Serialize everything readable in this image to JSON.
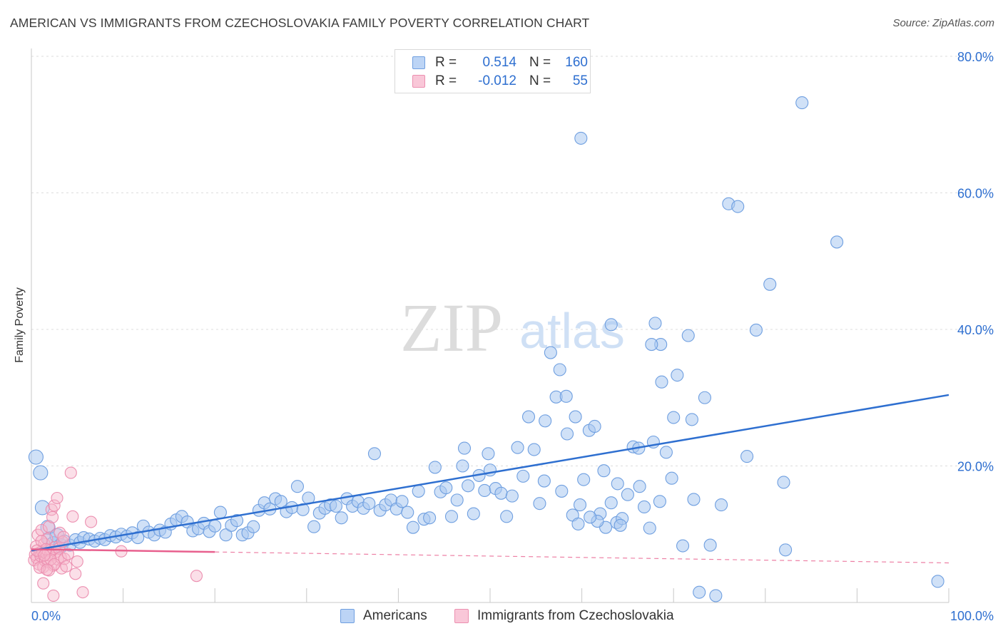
{
  "title": "AMERICAN VS IMMIGRANTS FROM CZECHOSLOVAKIA FAMILY POVERTY CORRELATION CHART",
  "source": "Source: ZipAtlas.com",
  "watermark": {
    "zip": "ZIP",
    "atlas": "atlas"
  },
  "legend": {
    "r_label": "R =",
    "n_label": "N =",
    "rows": [
      {
        "name": "Americans",
        "r": "0.514",
        "n": "160"
      },
      {
        "name": "Immigrants from Czechoslovakia",
        "r": "-0.012",
        "n": "55"
      }
    ]
  },
  "chart_data": {
    "type": "scatter",
    "title": "AMERICAN VS IMMIGRANTS FROM CZECHOSLOVAKIA FAMILY POVERTY CORRELATION CHART",
    "xlabel": "",
    "ylabel": "Family Poverty",
    "xlim": [
      0,
      100
    ],
    "ylim": [
      0,
      80
    ],
    "x_tick_labels": [
      "0.0%",
      "100.0%"
    ],
    "y_ticks": [
      20,
      40,
      60,
      80
    ],
    "y_tick_labels": [
      "20.0%",
      "40.0%",
      "60.0%",
      "80.0%"
    ],
    "colors": {
      "americans": "#2e6fd0",
      "czech": "#e8608e",
      "americans_fill": "#a9c8f0",
      "czech_fill": "#f7b8cd"
    },
    "series": [
      {
        "name": "Americans",
        "r": 0.514,
        "n": 160,
        "trend": {
          "x": [
            0,
            100
          ],
          "y": [
            7.6,
            30.4
          ],
          "style": "solid"
        },
        "points": [
          [
            0.5,
            21.3
          ],
          [
            1.0,
            19.0
          ],
          [
            1.2,
            13.9
          ],
          [
            1.8,
            11.0
          ],
          [
            2.0,
            9.3
          ],
          [
            2.4,
            8.6
          ],
          [
            2.8,
            9.8
          ],
          [
            3.2,
            8.3
          ],
          [
            3.6,
            9.0
          ],
          [
            4.2,
            8.4
          ],
          [
            4.8,
            9.2
          ],
          [
            5.3,
            8.8
          ],
          [
            5.7,
            9.5
          ],
          [
            6.3,
            9.3
          ],
          [
            6.9,
            9.0
          ],
          [
            7.5,
            9.4
          ],
          [
            8.0,
            9.2
          ],
          [
            8.6,
            9.8
          ],
          [
            9.2,
            9.6
          ],
          [
            9.8,
            10.0
          ],
          [
            10.4,
            9.7
          ],
          [
            11.0,
            10.2
          ],
          [
            11.6,
            9.5
          ],
          [
            12.2,
            11.2
          ],
          [
            12.8,
            10.3
          ],
          [
            13.4,
            9.9
          ],
          [
            14.0,
            10.6
          ],
          [
            14.6,
            10.3
          ],
          [
            15.2,
            11.5
          ],
          [
            15.8,
            12.1
          ],
          [
            16.4,
            12.6
          ],
          [
            17.0,
            11.8
          ],
          [
            17.6,
            10.5
          ],
          [
            18.2,
            10.8
          ],
          [
            18.8,
            11.6
          ],
          [
            19.4,
            10.4
          ],
          [
            20.0,
            11.2
          ],
          [
            20.6,
            13.2
          ],
          [
            21.2,
            9.9
          ],
          [
            21.8,
            11.3
          ],
          [
            22.4,
            12.0
          ],
          [
            23.0,
            9.9
          ],
          [
            23.6,
            10.2
          ],
          [
            24.2,
            11.1
          ],
          [
            24.8,
            13.5
          ],
          [
            25.4,
            14.6
          ],
          [
            26.0,
            13.7
          ],
          [
            26.6,
            15.2
          ],
          [
            27.2,
            14.8
          ],
          [
            27.8,
            13.3
          ],
          [
            28.4,
            13.9
          ],
          [
            29.0,
            17.0
          ],
          [
            29.6,
            13.6
          ],
          [
            30.2,
            15.3
          ],
          [
            30.8,
            11.1
          ],
          [
            31.4,
            13.1
          ],
          [
            32.0,
            13.8
          ],
          [
            32.6,
            14.3
          ],
          [
            33.2,
            14.1
          ],
          [
            33.8,
            12.4
          ],
          [
            34.4,
            15.2
          ],
          [
            35.0,
            14.1
          ],
          [
            35.6,
            14.8
          ],
          [
            36.2,
            13.8
          ],
          [
            36.8,
            14.5
          ],
          [
            37.4,
            21.8
          ],
          [
            38.0,
            13.5
          ],
          [
            38.6,
            14.3
          ],
          [
            39.2,
            15.0
          ],
          [
            39.8,
            13.7
          ],
          [
            40.4,
            14.8
          ],
          [
            41.0,
            13.2
          ],
          [
            41.6,
            11.0
          ],
          [
            42.2,
            16.3
          ],
          [
            42.8,
            12.2
          ],
          [
            43.4,
            12.4
          ],
          [
            44.0,
            19.8
          ],
          [
            44.6,
            16.2
          ],
          [
            45.2,
            16.8
          ],
          [
            45.8,
            12.6
          ],
          [
            46.4,
            15.0
          ],
          [
            47.0,
            20.0
          ],
          [
            47.6,
            17.1
          ],
          [
            48.2,
            13.0
          ],
          [
            48.8,
            18.6
          ],
          [
            49.4,
            16.4
          ],
          [
            50.0,
            19.4
          ],
          [
            50.6,
            16.7
          ],
          [
            51.2,
            16.0
          ],
          [
            51.8,
            12.6
          ],
          [
            52.4,
            15.6
          ],
          [
            53.0,
            22.7
          ],
          [
            53.6,
            18.5
          ],
          [
            54.2,
            27.2
          ],
          [
            54.8,
            22.4
          ],
          [
            55.4,
            14.5
          ],
          [
            56.0,
            26.6
          ],
          [
            56.6,
            36.6
          ],
          [
            57.2,
            30.1
          ],
          [
            57.8,
            16.3
          ],
          [
            58.4,
            24.7
          ],
          [
            59.0,
            12.8
          ],
          [
            59.6,
            11.5
          ],
          [
            60.2,
            18.0
          ],
          [
            60.8,
            25.2
          ],
          [
            61.4,
            25.8
          ],
          [
            62.0,
            13.0
          ],
          [
            62.6,
            11.0
          ],
          [
            63.2,
            14.6
          ],
          [
            63.8,
            11.7
          ],
          [
            64.4,
            12.3
          ],
          [
            65.0,
            15.8
          ],
          [
            65.6,
            22.8
          ],
          [
            66.2,
            22.6
          ],
          [
            66.8,
            14.0
          ],
          [
            67.4,
            10.9
          ],
          [
            68.0,
            40.9
          ],
          [
            68.6,
            37.8
          ],
          [
            69.2,
            22.0
          ],
          [
            69.8,
            18.2
          ],
          [
            70.4,
            33.3
          ],
          [
            71.0,
            8.3
          ],
          [
            71.6,
            39.1
          ],
          [
            72.2,
            15.1
          ],
          [
            72.8,
            1.5
          ],
          [
            73.4,
            30.0
          ],
          [
            74.0,
            8.4
          ],
          [
            74.6,
            1.0
          ],
          [
            75.2,
            14.3
          ],
          [
            76.0,
            58.4
          ],
          [
            77.0,
            58.0
          ],
          [
            78.0,
            21.4
          ],
          [
            79.0,
            39.9
          ],
          [
            80.5,
            46.6
          ],
          [
            82.0,
            17.6
          ],
          [
            82.2,
            7.7
          ],
          [
            84.0,
            73.2
          ],
          [
            87.8,
            52.8
          ],
          [
            98.8,
            3.1
          ],
          [
            68.5,
            14.8
          ],
          [
            49.8,
            21.8
          ],
          [
            58.3,
            30.2
          ],
          [
            59.3,
            27.2
          ],
          [
            64.2,
            11.3
          ],
          [
            66.3,
            17.0
          ],
          [
            62.4,
            19.3
          ],
          [
            67.8,
            23.5
          ],
          [
            61.7,
            11.9
          ],
          [
            63.9,
            17.4
          ],
          [
            60.9,
            12.5
          ],
          [
            59.8,
            14.3
          ],
          [
            55.9,
            17.8
          ],
          [
            59.9,
            68.0
          ],
          [
            47.2,
            22.6
          ],
          [
            63.2,
            40.7
          ],
          [
            70.0,
            27.1
          ],
          [
            57.6,
            34.1
          ],
          [
            67.6,
            37.8
          ],
          [
            68.7,
            32.3
          ],
          [
            72.0,
            26.8
          ]
        ]
      },
      {
        "name": "Immigrants from Czechoslovakia",
        "r": -0.012,
        "n": 55,
        "trend": {
          "x": [
            0,
            100
          ],
          "y": [
            7.8,
            5.8
          ],
          "style": "solid-then-dashed",
          "solid_until_x": 20
        },
        "points": [
          [
            0.3,
            6.2
          ],
          [
            0.4,
            7.0
          ],
          [
            0.5,
            8.2
          ],
          [
            0.6,
            6.5
          ],
          [
            0.7,
            9.9
          ],
          [
            0.8,
            5.6
          ],
          [
            0.9,
            7.3
          ],
          [
            1.0,
            6.8
          ],
          [
            1.1,
            10.6
          ],
          [
            1.2,
            7.5
          ],
          [
            1.3,
            5.2
          ],
          [
            1.4,
            8.6
          ],
          [
            1.5,
            6.1
          ],
          [
            1.6,
            7.2
          ],
          [
            1.7,
            9.3
          ],
          [
            1.8,
            5.9
          ],
          [
            1.9,
            11.1
          ],
          [
            2.0,
            6.9
          ],
          [
            2.1,
            7.7
          ],
          [
            2.2,
            13.6
          ],
          [
            2.3,
            12.5
          ],
          [
            2.4,
            5.4
          ],
          [
            2.5,
            14.2
          ],
          [
            2.6,
            8.1
          ],
          [
            2.7,
            7.4
          ],
          [
            2.8,
            15.3
          ],
          [
            2.9,
            6.3
          ],
          [
            3.0,
            7.9
          ],
          [
            3.1,
            10.2
          ],
          [
            3.2,
            6.6
          ],
          [
            3.3,
            5.0
          ],
          [
            3.4,
            8.9
          ],
          [
            3.6,
            6.4
          ],
          [
            3.8,
            5.3
          ],
          [
            4.0,
            7.1
          ],
          [
            4.3,
            19.0
          ],
          [
            4.5,
            12.6
          ],
          [
            4.8,
            4.2
          ],
          [
            5.0,
            6.0
          ],
          [
            5.6,
            1.5
          ],
          [
            6.5,
            11.8
          ],
          [
            9.8,
            7.5
          ],
          [
            18.0,
            3.9
          ],
          [
            1.3,
            2.8
          ],
          [
            2.4,
            1.0
          ],
          [
            1.9,
            4.7
          ],
          [
            0.9,
            5.1
          ],
          [
            1.1,
            9.0
          ],
          [
            1.6,
            7.8
          ],
          [
            2.1,
            6.3
          ],
          [
            2.5,
            5.6
          ],
          [
            0.6,
            7.6
          ],
          [
            1.4,
            6.9
          ],
          [
            3.5,
            9.6
          ],
          [
            1.7,
            4.8
          ]
        ]
      }
    ]
  }
}
